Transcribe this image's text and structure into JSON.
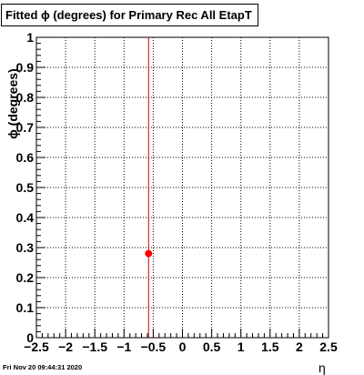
{
  "chart_data": {
    "type": "scatter",
    "title": "Fitted ϕ (degrees) for Primary Rec All EtapT",
    "xlabel": "η",
    "ylabel": "ϕ (degrees)",
    "xlim": [
      -2.5,
      2.5
    ],
    "ylim": [
      0,
      1
    ],
    "x_ticks": [
      "−2.5",
      "−2",
      "−1.5",
      "−1",
      "−0.5",
      "0",
      "0.5",
      "1",
      "1.5",
      "2",
      "2.5"
    ],
    "y_ticks": [
      "0",
      "0.1",
      "0.2",
      "0.3",
      "0.4",
      "0.5",
      "0.6",
      "0.7",
      "0.8",
      "0.9",
      "1"
    ],
    "grid": true,
    "points": [
      {
        "x": -0.58,
        "y": 0.28,
        "y_err_low": 0.28,
        "y_err_high": 0.72
      }
    ],
    "marker_color": "#ff0000",
    "error_bar_color": "#cc0000"
  },
  "footer": {
    "timestamp": "Fri Nov 20 09:44:31 2020"
  }
}
